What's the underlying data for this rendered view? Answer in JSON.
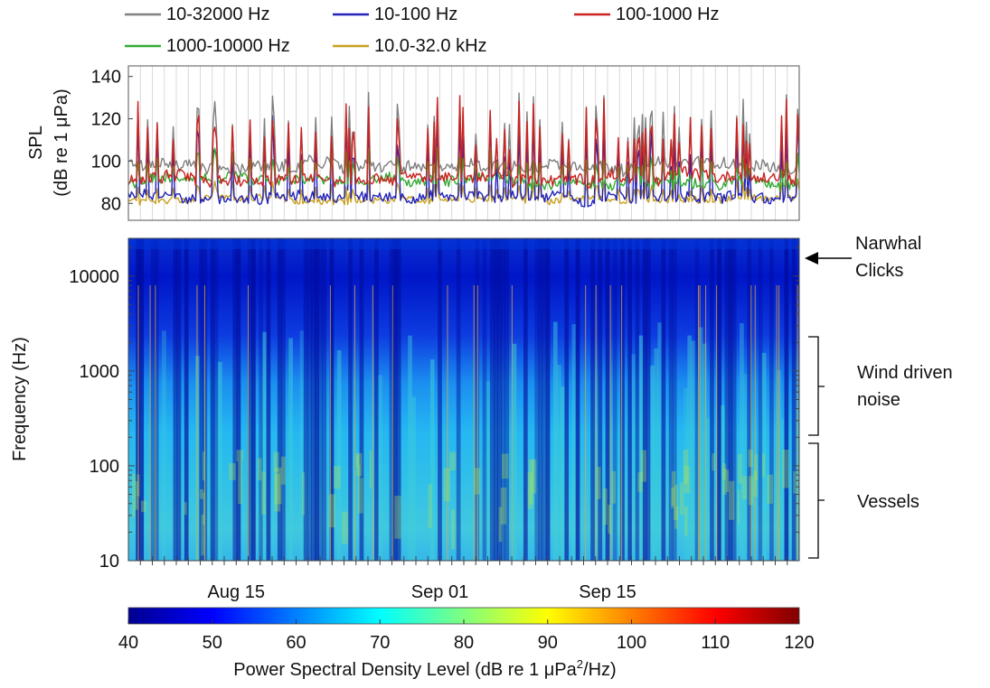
{
  "chart_data": [
    {
      "type": "line",
      "ylabel_line1": "SPL",
      "ylabel_line2": "(dB re 1 μPa)",
      "ylim": [
        72,
        145
      ],
      "yticks": [
        80,
        100,
        120,
        140
      ],
      "xlim_days": [
        0,
        56
      ],
      "grid": "vertical",
      "legend_placement": "top",
      "series": [
        {
          "name": "10-32000 Hz",
          "color": "#7f7f7f",
          "base": 98,
          "noise": 9,
          "spike": 135
        },
        {
          "name": "10-100 Hz",
          "color": "#2222bb",
          "base": 83,
          "noise": 8,
          "spike": 125
        },
        {
          "name": "100-1000 Hz",
          "color": "#cc2222",
          "base": 92,
          "noise": 9,
          "spike": 133
        },
        {
          "name": "1000-10000 Hz",
          "color": "#33aa33",
          "base": 90,
          "noise": 8,
          "spike": 105
        },
        {
          "name": "10.0-32.0 kHz",
          "color": "#c8a020",
          "base": 82,
          "noise": 5,
          "spike": 92
        }
      ]
    },
    {
      "type": "heatmap",
      "ylabel": "Frequency (Hz)",
      "yscale": "log",
      "ylim": [
        10,
        25000
      ],
      "yticks": [
        10,
        100,
        1000,
        10000
      ],
      "xticks": [
        {
          "label": "Aug 15",
          "day": 9
        },
        {
          "label": "Sep 01",
          "day": 26
        },
        {
          "label": "Sep 15",
          "day": 40
        }
      ],
      "xlim_days": [
        0,
        56
      ]
    }
  ],
  "colorbar": {
    "range": [
      40,
      120
    ],
    "ticks": [
      40,
      50,
      60,
      70,
      80,
      90,
      100,
      110,
      120
    ],
    "label_prefix": "Power Spectral Density Level (dB re 1 μPa",
    "label_sup": "2",
    "label_suffix": "/Hz)"
  },
  "annotations": {
    "narwhal_line1": "Narwhal",
    "narwhal_line2": "Clicks",
    "wind_line1": "Wind driven",
    "wind_line2": "noise",
    "vessels": "Vessels"
  }
}
